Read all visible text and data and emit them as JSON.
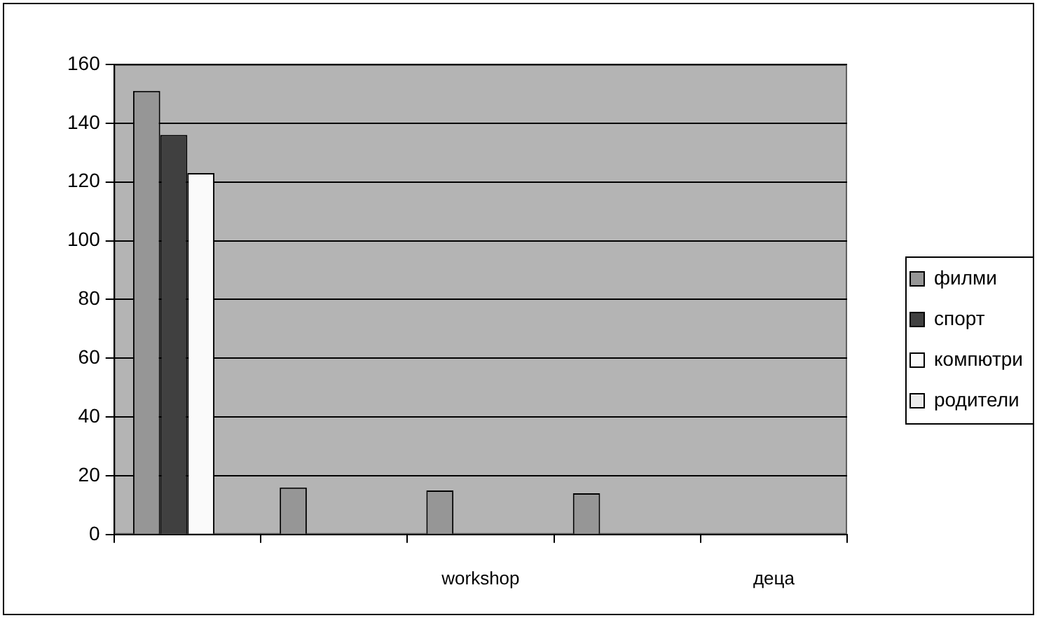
{
  "chart_data": {
    "type": "bar",
    "categories": [
      null,
      null,
      "workshop",
      null,
      "деца"
    ],
    "series": [
      {
        "name": "филми",
        "color": "#969696",
        "values": [
          151,
          16,
          15,
          14,
          null
        ]
      },
      {
        "name": "спорт",
        "color": "#404040",
        "values": [
          136,
          null,
          null,
          null,
          null
        ]
      },
      {
        "name": "компютри",
        "color": "#fafafa",
        "values": [
          123,
          null,
          null,
          null,
          null
        ]
      },
      {
        "name": "родители",
        "color": "#eaeaea",
        "values": [
          null,
          null,
          null,
          null,
          null
        ]
      }
    ],
    "ylim": [
      0,
      160
    ],
    "yticks": [
      0,
      20,
      40,
      60,
      80,
      100,
      120,
      140,
      160
    ],
    "grid": "y",
    "legend": "right"
  }
}
